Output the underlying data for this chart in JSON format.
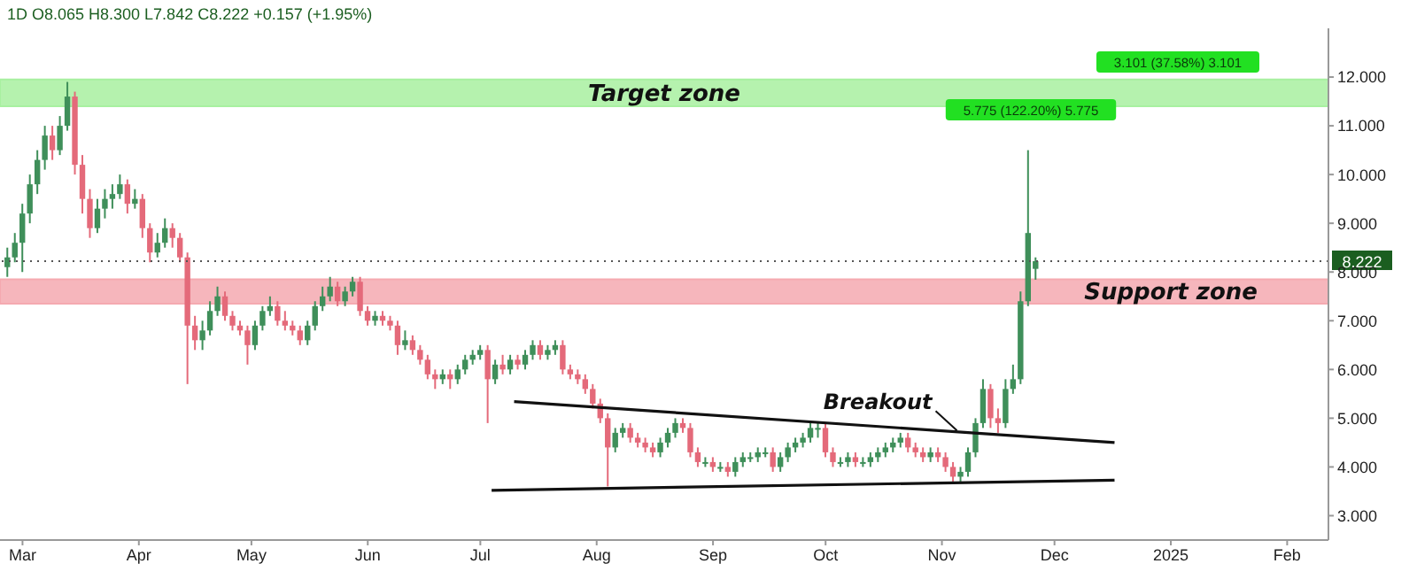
{
  "chart_data": {
    "type": "candlestick",
    "title": "1D  O8.065  H8.300  L7.842  C8.222  +0.157 (+1.95%)",
    "x": [
      "2024-02-26",
      "2024-02-28",
      "2024-03-01",
      "2024-03-03",
      "2024-03-05",
      "2024-03-07",
      "2024-03-09",
      "2024-03-11",
      "2024-03-13",
      "2024-03-15",
      "2024-03-17",
      "2024-03-19",
      "2024-03-21",
      "2024-03-23",
      "2024-03-25",
      "2024-03-27",
      "2024-03-29",
      "2024-03-31",
      "2024-04-02",
      "2024-04-04",
      "2024-04-06",
      "2024-04-08",
      "2024-04-10",
      "2024-04-12",
      "2024-04-14",
      "2024-04-16",
      "2024-04-18",
      "2024-04-20",
      "2024-04-22",
      "2024-04-24",
      "2024-04-26",
      "2024-04-28",
      "2024-04-30",
      "2024-05-02",
      "2024-05-04",
      "2024-05-06",
      "2024-05-08",
      "2024-05-10",
      "2024-05-12",
      "2024-05-14",
      "2024-05-16",
      "2024-05-18",
      "2024-05-20",
      "2024-05-22",
      "2024-05-24",
      "2024-05-26",
      "2024-05-28",
      "2024-05-30",
      "2024-06-01",
      "2024-06-03",
      "2024-06-05",
      "2024-06-07",
      "2024-06-09",
      "2024-06-11",
      "2024-06-13",
      "2024-06-15",
      "2024-06-17",
      "2024-06-19",
      "2024-06-21",
      "2024-06-23",
      "2024-06-25",
      "2024-06-27",
      "2024-06-29",
      "2024-07-01",
      "2024-07-03",
      "2024-07-05",
      "2024-07-07",
      "2024-07-09",
      "2024-07-11",
      "2024-07-13",
      "2024-07-15",
      "2024-07-17",
      "2024-07-19",
      "2024-07-21",
      "2024-07-23",
      "2024-07-25",
      "2024-07-27",
      "2024-07-29",
      "2024-07-31",
      "2024-08-02",
      "2024-08-04",
      "2024-08-06",
      "2024-08-08",
      "2024-08-10",
      "2024-08-12",
      "2024-08-14",
      "2024-08-16",
      "2024-08-18",
      "2024-08-20",
      "2024-08-22",
      "2024-08-24",
      "2024-08-26",
      "2024-08-28",
      "2024-08-30",
      "2024-09-01",
      "2024-09-03",
      "2024-09-05",
      "2024-09-07",
      "2024-09-09",
      "2024-09-11",
      "2024-09-13",
      "2024-09-15",
      "2024-09-17",
      "2024-09-19",
      "2024-09-21",
      "2024-09-23",
      "2024-09-25",
      "2024-09-27",
      "2024-09-29",
      "2024-10-01",
      "2024-10-03",
      "2024-10-05",
      "2024-10-07",
      "2024-10-09",
      "2024-10-11",
      "2024-10-13",
      "2024-10-15",
      "2024-10-17",
      "2024-10-19",
      "2024-10-21",
      "2024-10-23",
      "2024-10-25",
      "2024-10-27",
      "2024-10-29",
      "2024-10-31",
      "2024-11-02",
      "2024-11-04",
      "2024-11-06",
      "2024-11-08",
      "2024-11-10",
      "2024-11-12",
      "2024-11-14",
      "2024-11-16",
      "2024-11-18",
      "2024-11-20",
      "2024-11-22",
      "2024-11-24",
      "2024-11-26"
    ],
    "ohlc": [
      [
        8.1,
        8.5,
        7.9,
        8.3
      ],
      [
        8.3,
        8.8,
        8.2,
        8.6
      ],
      [
        8.6,
        9.4,
        8.0,
        9.2
      ],
      [
        9.2,
        10.0,
        9.0,
        9.8
      ],
      [
        9.8,
        10.5,
        9.6,
        10.3
      ],
      [
        10.3,
        11.0,
        10.1,
        10.8
      ],
      [
        10.8,
        11.0,
        10.3,
        10.5
      ],
      [
        10.5,
        11.2,
        10.4,
        11.0
      ],
      [
        11.0,
        11.9,
        10.9,
        11.6
      ],
      [
        11.6,
        11.7,
        10.0,
        10.2
      ],
      [
        10.2,
        10.4,
        9.2,
        9.5
      ],
      [
        9.5,
        9.7,
        8.7,
        8.9
      ],
      [
        8.9,
        9.5,
        8.8,
        9.3
      ],
      [
        9.3,
        9.7,
        9.1,
        9.5
      ],
      [
        9.5,
        9.8,
        9.3,
        9.6
      ],
      [
        9.6,
        10.0,
        9.5,
        9.8
      ],
      [
        9.8,
        9.9,
        9.2,
        9.4
      ],
      [
        9.4,
        9.7,
        9.3,
        9.5
      ],
      [
        9.5,
        9.6,
        8.7,
        8.9
      ],
      [
        8.9,
        9.0,
        8.2,
        8.4
      ],
      [
        8.4,
        8.8,
        8.3,
        8.6
      ],
      [
        8.6,
        9.1,
        8.5,
        8.9
      ],
      [
        8.9,
        9.0,
        8.5,
        8.7
      ],
      [
        8.7,
        8.8,
        8.2,
        8.3
      ],
      [
        8.3,
        8.4,
        5.7,
        6.9
      ],
      [
        6.9,
        7.1,
        6.4,
        6.6
      ],
      [
        6.6,
        7.0,
        6.4,
        6.8
      ],
      [
        6.8,
        7.4,
        6.7,
        7.2
      ],
      [
        7.2,
        7.7,
        7.1,
        7.5
      ],
      [
        7.5,
        7.6,
        7.0,
        7.1
      ],
      [
        7.1,
        7.2,
        6.8,
        6.9
      ],
      [
        6.9,
        7.0,
        6.7,
        6.8
      ],
      [
        6.8,
        6.9,
        6.1,
        6.5
      ],
      [
        6.5,
        7.0,
        6.4,
        6.9
      ],
      [
        6.9,
        7.3,
        6.8,
        7.2
      ],
      [
        7.2,
        7.5,
        7.1,
        7.3
      ],
      [
        7.3,
        7.4,
        6.9,
        7.0
      ],
      [
        7.0,
        7.2,
        6.8,
        6.9
      ],
      [
        6.9,
        7.0,
        6.7,
        6.8
      ],
      [
        6.8,
        6.9,
        6.5,
        6.6
      ],
      [
        6.6,
        7.0,
        6.5,
        6.9
      ],
      [
        6.9,
        7.4,
        6.8,
        7.3
      ],
      [
        7.3,
        7.7,
        7.2,
        7.5
      ],
      [
        7.5,
        7.9,
        7.4,
        7.7
      ],
      [
        7.7,
        7.8,
        7.3,
        7.4
      ],
      [
        7.4,
        7.7,
        7.3,
        7.6
      ],
      [
        7.6,
        7.9,
        7.5,
        7.8
      ],
      [
        7.8,
        7.9,
        7.1,
        7.2
      ],
      [
        7.2,
        7.3,
        6.9,
        7.0
      ],
      [
        7.0,
        7.2,
        6.9,
        7.1
      ],
      [
        7.1,
        7.2,
        6.9,
        7.0
      ],
      [
        7.0,
        7.1,
        6.8,
        6.9
      ],
      [
        6.9,
        7.0,
        6.3,
        6.5
      ],
      [
        6.5,
        6.8,
        6.4,
        6.6
      ],
      [
        6.6,
        6.7,
        6.3,
        6.4
      ],
      [
        6.4,
        6.5,
        6.1,
        6.2
      ],
      [
        6.2,
        6.3,
        5.8,
        5.9
      ],
      [
        5.9,
        6.0,
        5.6,
        5.8
      ],
      [
        5.8,
        6.0,
        5.7,
        5.9
      ],
      [
        5.9,
        6.0,
        5.6,
        5.8
      ],
      [
        5.8,
        6.1,
        5.7,
        6.0
      ],
      [
        6.0,
        6.3,
        5.9,
        6.2
      ],
      [
        6.2,
        6.4,
        6.1,
        6.3
      ],
      [
        6.3,
        6.5,
        6.2,
        6.4
      ],
      [
        6.4,
        6.5,
        4.9,
        5.8
      ],
      [
        5.8,
        6.2,
        5.7,
        6.1
      ],
      [
        6.1,
        6.3,
        5.9,
        6.0
      ],
      [
        6.0,
        6.3,
        5.9,
        6.2
      ],
      [
        6.2,
        6.3,
        6.0,
        6.1
      ],
      [
        6.1,
        6.4,
        6.0,
        6.3
      ],
      [
        6.3,
        6.6,
        6.2,
        6.5
      ],
      [
        6.5,
        6.6,
        6.2,
        6.3
      ],
      [
        6.3,
        6.5,
        6.2,
        6.4
      ],
      [
        6.4,
        6.6,
        6.3,
        6.5
      ],
      [
        6.5,
        6.6,
        5.9,
        6.0
      ],
      [
        6.0,
        6.1,
        5.8,
        5.9
      ],
      [
        5.9,
        6.0,
        5.7,
        5.8
      ],
      [
        5.8,
        5.9,
        5.5,
        5.6
      ],
      [
        5.6,
        5.7,
        5.2,
        5.3
      ],
      [
        5.3,
        5.4,
        4.9,
        5.0
      ],
      [
        5.0,
        5.1,
        3.6,
        4.4
      ],
      [
        4.4,
        4.8,
        4.3,
        4.7
      ],
      [
        4.7,
        4.9,
        4.6,
        4.8
      ],
      [
        4.8,
        4.9,
        4.5,
        4.6
      ],
      [
        4.6,
        4.7,
        4.4,
        4.5
      ],
      [
        4.5,
        4.6,
        4.3,
        4.4
      ],
      [
        4.4,
        4.5,
        4.2,
        4.3
      ],
      [
        4.3,
        4.6,
        4.2,
        4.5
      ],
      [
        4.5,
        4.8,
        4.4,
        4.7
      ],
      [
        4.7,
        5.0,
        4.6,
        4.9
      ],
      [
        4.9,
        5.0,
        4.7,
        4.8
      ],
      [
        4.8,
        4.9,
        4.2,
        4.3
      ],
      [
        4.3,
        4.4,
        4.0,
        4.1
      ],
      [
        4.1,
        4.2,
        4.0,
        4.1
      ],
      [
        4.1,
        4.2,
        3.9,
        4.0
      ],
      [
        4.0,
        4.1,
        3.9,
        4.0
      ],
      [
        4.0,
        4.1,
        3.8,
        3.9
      ],
      [
        3.9,
        4.2,
        3.8,
        4.1
      ],
      [
        4.1,
        4.3,
        4.0,
        4.2
      ],
      [
        4.2,
        4.3,
        4.1,
        4.2
      ],
      [
        4.2,
        4.4,
        4.1,
        4.3
      ],
      [
        4.3,
        4.4,
        4.2,
        4.3
      ],
      [
        4.3,
        4.4,
        3.9,
        4.0
      ],
      [
        4.0,
        4.3,
        3.9,
        4.2
      ],
      [
        4.2,
        4.5,
        4.1,
        4.4
      ],
      [
        4.4,
        4.6,
        4.3,
        4.5
      ],
      [
        4.5,
        4.7,
        4.4,
        4.6
      ],
      [
        4.6,
        4.9,
        4.5,
        4.8
      ],
      [
        4.8,
        4.9,
        4.6,
        4.8
      ],
      [
        4.8,
        4.9,
        4.2,
        4.3
      ],
      [
        4.3,
        4.4,
        4.0,
        4.1
      ],
      [
        4.1,
        4.2,
        4.0,
        4.1
      ],
      [
        4.1,
        4.3,
        4.0,
        4.2
      ],
      [
        4.2,
        4.3,
        4.0,
        4.1
      ],
      [
        4.1,
        4.2,
        4.0,
        4.1
      ],
      [
        4.1,
        4.3,
        4.0,
        4.2
      ],
      [
        4.2,
        4.4,
        4.1,
        4.3
      ],
      [
        4.3,
        4.5,
        4.2,
        4.4
      ],
      [
        4.4,
        4.6,
        4.3,
        4.5
      ],
      [
        4.5,
        4.7,
        4.4,
        4.6
      ],
      [
        4.6,
        4.7,
        4.3,
        4.4
      ],
      [
        4.4,
        4.5,
        4.2,
        4.3
      ],
      [
        4.3,
        4.4,
        4.1,
        4.2
      ],
      [
        4.2,
        4.4,
        4.1,
        4.3
      ],
      [
        4.3,
        4.4,
        4.1,
        4.2
      ],
      [
        4.2,
        4.3,
        3.9,
        4.0
      ],
      [
        4.0,
        4.1,
        3.7,
        3.8
      ],
      [
        3.8,
        4.0,
        3.7,
        3.9
      ],
      [
        3.9,
        4.4,
        3.8,
        4.3
      ],
      [
        4.3,
        5.0,
        4.2,
        4.9
      ],
      [
        4.9,
        5.8,
        4.8,
        5.6
      ],
      [
        5.6,
        5.7,
        4.8,
        5.0
      ],
      [
        5.0,
        5.2,
        4.7,
        4.9
      ],
      [
        4.9,
        5.8,
        4.8,
        5.6
      ],
      [
        5.6,
        6.1,
        5.5,
        5.8
      ],
      [
        5.8,
        7.6,
        5.7,
        7.4
      ],
      [
        7.4,
        10.5,
        7.3,
        8.8
      ],
      [
        8.065,
        8.3,
        7.842,
        8.222
      ]
    ],
    "series": [
      {
        "type": "line",
        "color": "#111111",
        "x": [
          "2024-07-10",
          "2024-12-17"
        ],
        "values": [
          5.34,
          4.5
        ]
      },
      {
        "type": "line",
        "color": "#111111",
        "x": [
          "2024-07-04",
          "2024-12-17"
        ],
        "values": [
          3.52,
          3.73
        ]
      }
    ],
    "xlim": [
      "2024-02-24",
      "2025-02-12"
    ],
    "xticks": [
      {
        "value": "2024-03-01",
        "label": "Mar"
      },
      {
        "value": "2024-04-01",
        "label": "Apr"
      },
      {
        "value": "2024-05-01",
        "label": "May"
      },
      {
        "value": "2024-06-01",
        "label": "Jun"
      },
      {
        "value": "2024-07-01",
        "label": "Jul"
      },
      {
        "value": "2024-08-01",
        "label": "Aug"
      },
      {
        "value": "2024-09-01",
        "label": "Sep"
      },
      {
        "value": "2024-10-01",
        "label": "Oct"
      },
      {
        "value": "2024-11-01",
        "label": "Nov"
      },
      {
        "value": "2024-12-01",
        "label": "Dec"
      },
      {
        "value": "2025-01-01",
        "label": "2025"
      },
      {
        "value": "2025-02-01",
        "label": "Feb"
      }
    ],
    "ylim": [
      2.5,
      13
    ],
    "yticks": [
      {
        "value": 3,
        "label": "3.000"
      },
      {
        "value": 4,
        "label": "4.000"
      },
      {
        "value": 5,
        "label": "5.000"
      },
      {
        "value": 6,
        "label": "6.000"
      },
      {
        "value": 7,
        "label": "7.000"
      },
      {
        "value": 8,
        "label": "8.000"
      },
      {
        "value": 9,
        "label": "9.000"
      },
      {
        "value": 10,
        "label": "10.000"
      },
      {
        "value": 11,
        "label": "11.000"
      },
      {
        "value": 12,
        "label": "12.000"
      }
    ],
    "bands": [
      {
        "axis": "y",
        "from": 11.4,
        "to": 11.95,
        "label": "Target zone",
        "color": "#a8f0a0"
      },
      {
        "axis": "y",
        "from": 7.35,
        "to": 7.85,
        "label": "Support zone",
        "color": "#f5a9b0"
      }
    ],
    "ref_lines": [
      {
        "axis": "y",
        "value": 8.222,
        "label": "8.222",
        "color": "#555555",
        "line_style": "dotted"
      }
    ],
    "annotations": [
      {
        "text": "Breakout",
        "x": "2024-11-05",
        "y": 4.75
      },
      "5.775 (122.20%) 5.775",
      "3.101 (37.58%) 3.101"
    ],
    "grid": false,
    "legend": false
  }
}
